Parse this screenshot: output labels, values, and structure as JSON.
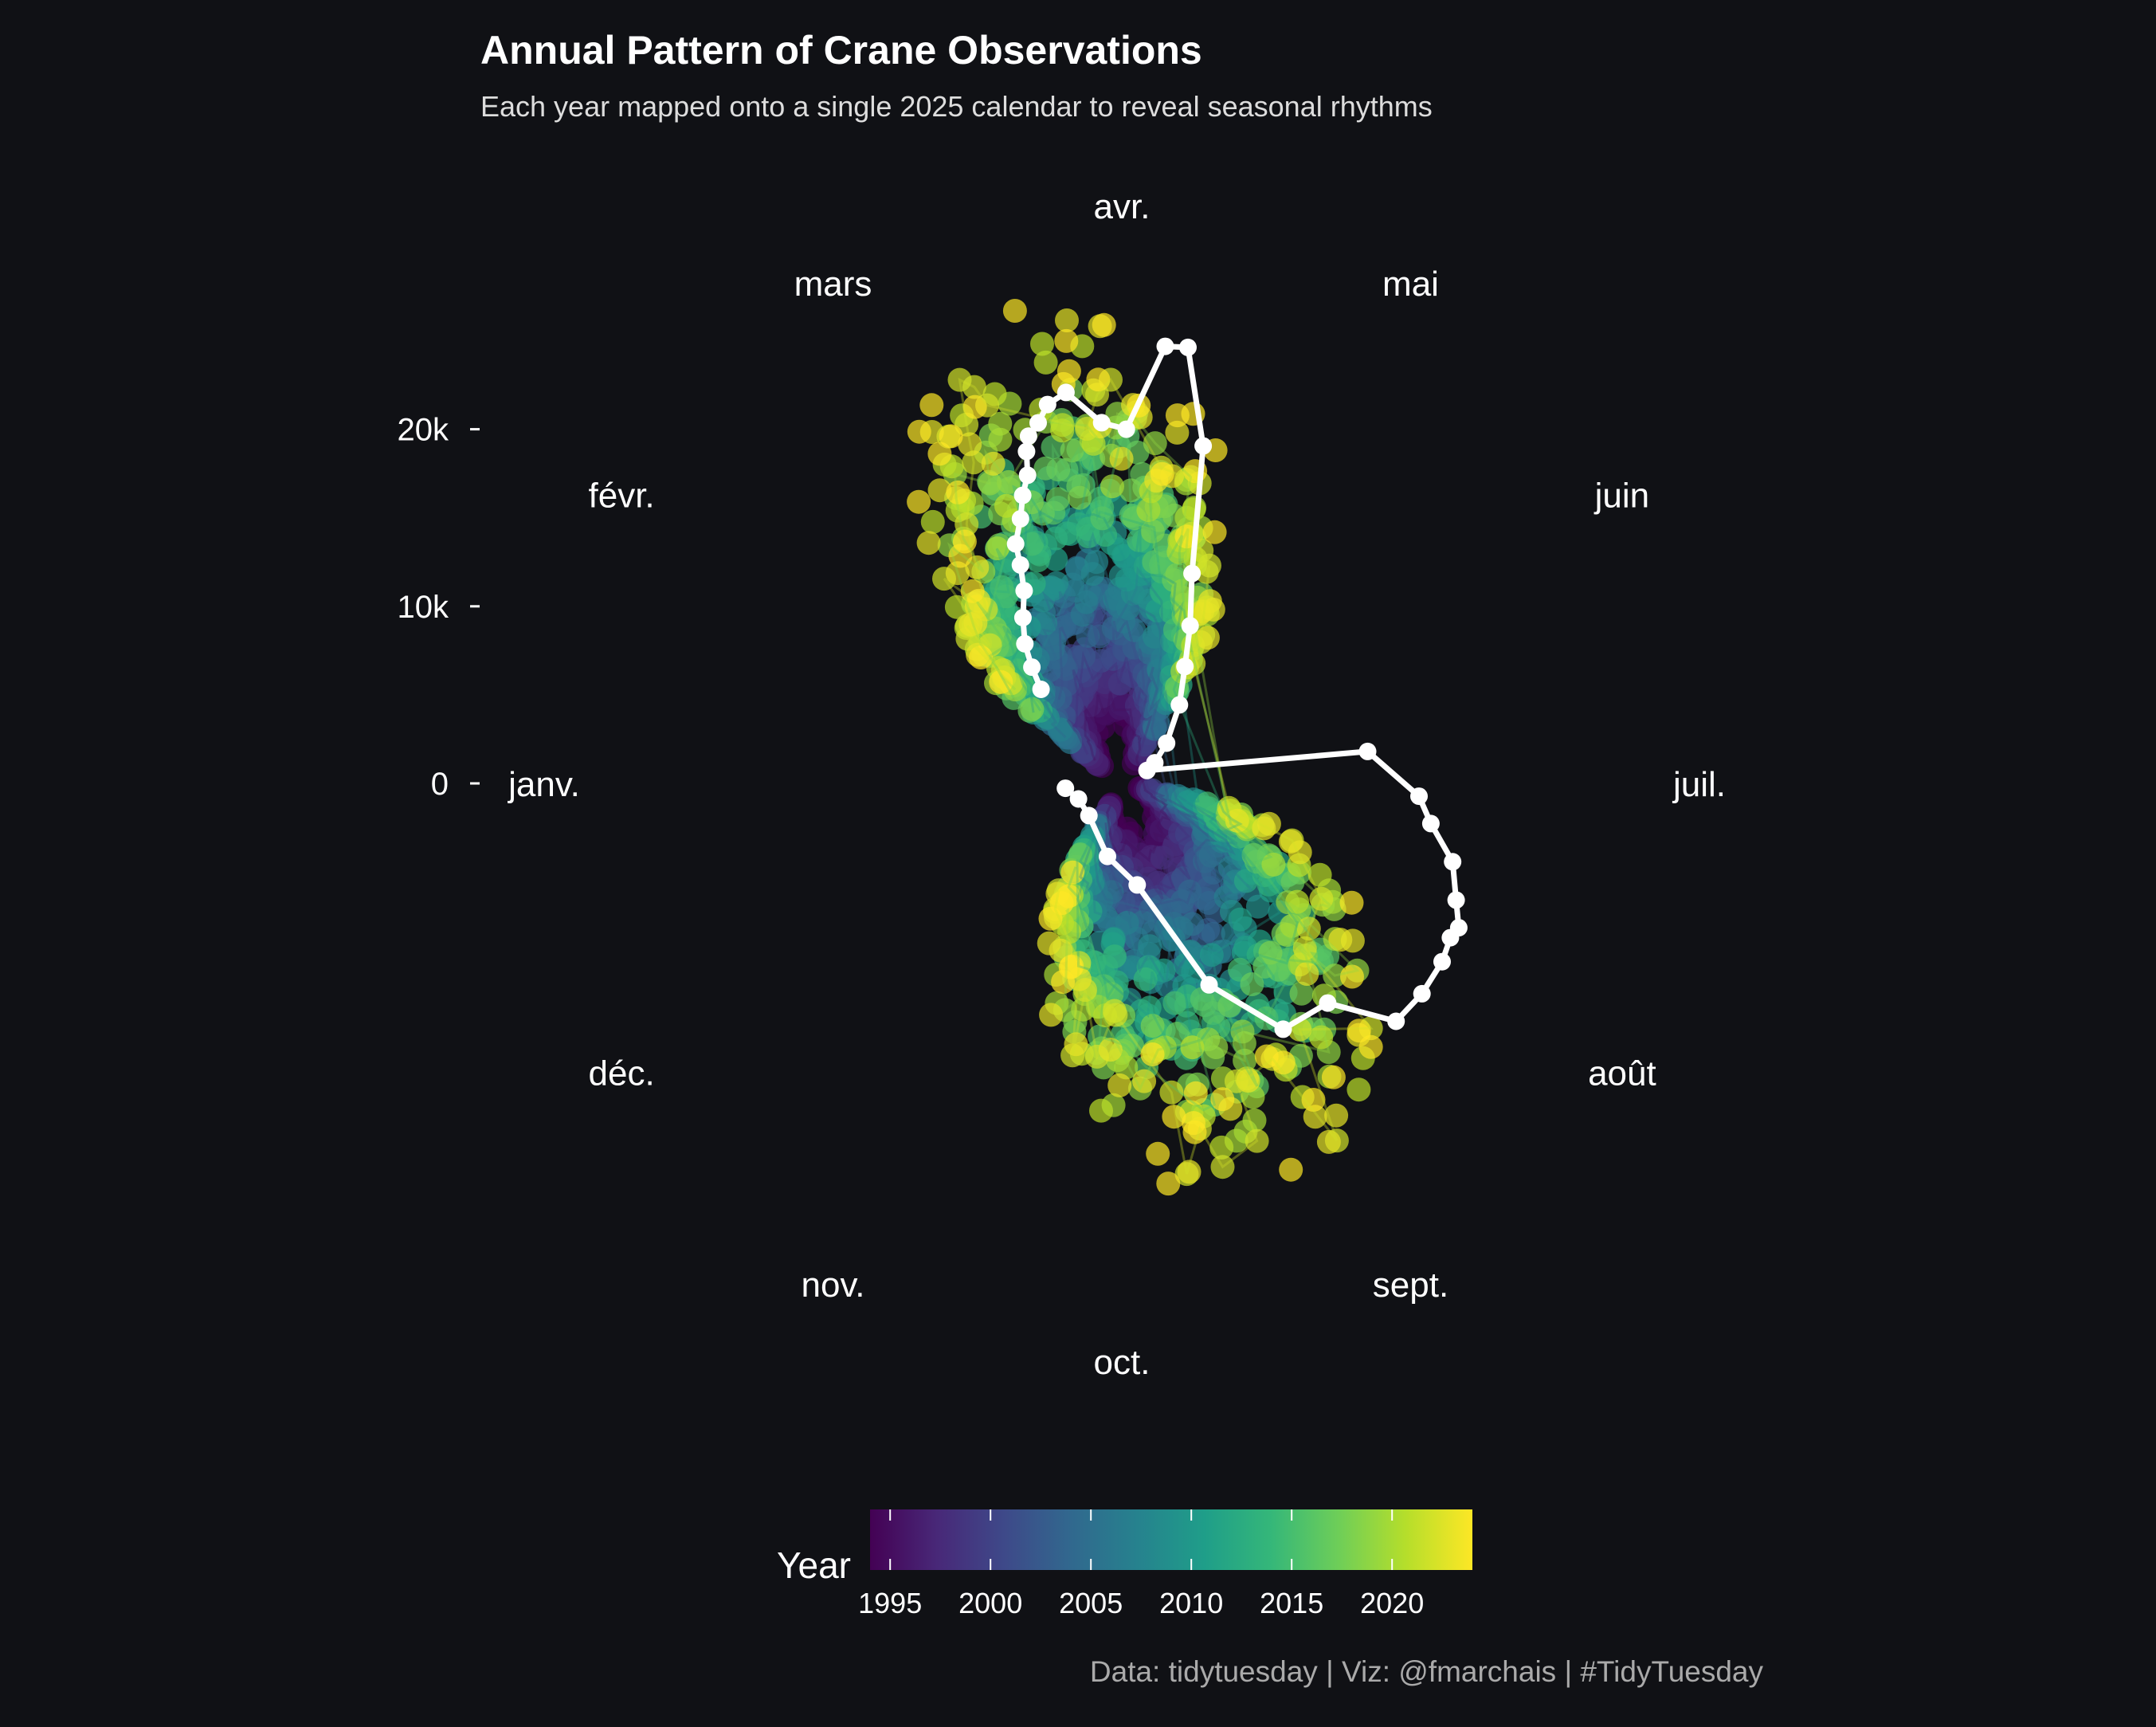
{
  "chart_data": {
    "type": "scatter",
    "coord": "polar",
    "title": "Annual Pattern of Crane Observations",
    "subtitle": "Each year mapped onto a single 2025 calendar to reveal seasonal rhythms",
    "caption": "Data: tidytuesday | Viz: @fmarchais  | #TidyTuesday",
    "angle_axis": {
      "labels": [
        "janv.",
        "févr.",
        "mars",
        "avr.",
        "mai",
        "juin",
        "juil.",
        "août",
        "sept.",
        "oct.",
        "nov.",
        "déc."
      ]
    },
    "radial_axis": {
      "ticks": [
        0,
        10000,
        20000
      ],
      "tick_labels": [
        "0",
        "10k",
        "20k"
      ],
      "range": [
        0,
        27000
      ]
    },
    "colorbar": {
      "title": "Year",
      "range": [
        1994,
        2024
      ],
      "ticks": [
        1995,
        2000,
        2005,
        2010,
        2015,
        2020
      ],
      "colors": [
        "#440154",
        "#482878",
        "#3e4989",
        "#31688e",
        "#26828e",
        "#1f9e89",
        "#35b779",
        "#6ece58",
        "#b5de2b",
        "#fde725"
      ]
    },
    "series": [
      {
        "values": [
          [
            50,
            7000
          ],
          [
            53,
            8300
          ],
          [
            56,
            9600
          ],
          [
            60,
            10900
          ],
          [
            64,
            12200
          ],
          [
            66,
            13600
          ],
          [
            67,
            14800
          ],
          [
            70,
            16000
          ],
          [
            72,
            17200
          ],
          [
            74,
            18200
          ],
          [
            75,
            19500
          ],
          [
            76,
            20300
          ],
          [
            78,
            20900
          ],
          [
            80,
            21800
          ],
          [
            83,
            22300
          ],
          [
            88,
            20400
          ],
          [
            92,
            20000
          ],
          [
            97,
            24800
          ],
          [
            100,
            24900
          ],
          [
            105,
            19600
          ],
          [
            110,
            12500
          ],
          [
            115,
            9700
          ],
          [
            120,
            7500
          ],
          [
            128,
            5500
          ],
          [
            140,
            3400
          ],
          [
            150,
            2200
          ],
          [
            155,
            1600
          ],
          [
            175,
            14000
          ],
          [
            185,
            16800
          ],
          [
            190,
            17600
          ],
          [
            196,
            19200
          ],
          [
            202,
            20000
          ],
          [
            206,
            20700
          ],
          [
            208,
            20500
          ],
          [
            212,
            20700
          ],
          [
            218,
            20700
          ],
          [
            224,
            20500
          ],
          [
            230,
            17000
          ],
          [
            240,
            16600
          ],
          [
            250,
            12400
          ],
          [
            265,
            5800
          ],
          [
            285,
            4200
          ],
          [
            320,
            2600
          ],
          [
            345,
            2600
          ],
          [
            360,
            3200
          ]
        ]
      }
    ],
    "scatter_range": {
      "years": [
        1994,
        2024
      ],
      "season_ranges": [
        {
          "doy": [
            30,
            130
          ],
          "value": [
            0,
            27000
          ]
        },
        {
          "doy": [
            170,
            300
          ],
          "value": [
            0,
            24000
          ]
        }
      ]
    }
  }
}
